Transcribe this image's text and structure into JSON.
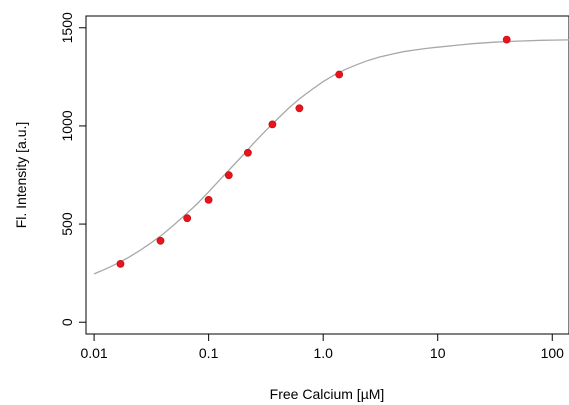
{
  "chart_data": {
    "type": "scatter",
    "title": "",
    "xlabel": "Free Calcium [µM]",
    "ylabel": "Fl. Intensity [a.u.]",
    "x_scale": "log",
    "xlim": [
      0.0085,
      140
    ],
    "ylim": [
      -60,
      1560
    ],
    "x_ticks": [
      {
        "value": 0.01,
        "label": "0.01"
      },
      {
        "value": 0.1,
        "label": "0.1"
      },
      {
        "value": 1,
        "label": "1.0"
      },
      {
        "value": 10,
        "label": "10"
      },
      {
        "value": 100,
        "label": "100"
      }
    ],
    "y_ticks": [
      {
        "value": 0,
        "label": "0"
      },
      {
        "value": 500,
        "label": "500"
      },
      {
        "value": 1000,
        "label": "1000"
      },
      {
        "value": 1500,
        "label": "1500"
      }
    ],
    "grid": false,
    "legend": "none",
    "points": {
      "color": "#e8131b",
      "x": [
        0.017,
        0.038,
        0.065,
        0.1,
        0.15,
        0.22,
        0.36,
        0.62,
        1.38,
        40
      ],
      "y": [
        297,
        415,
        530,
        623,
        749,
        863,
        1008,
        1090,
        1262,
        1440
      ]
    },
    "fit_curve": {
      "color": "#a8a8a8",
      "x": [
        0.01,
        0.0125,
        0.0158,
        0.02,
        0.025,
        0.0316,
        0.04,
        0.05,
        0.063,
        0.08,
        0.1,
        0.125,
        0.158,
        0.2,
        0.25,
        0.316,
        0.4,
        0.5,
        0.63,
        0.8,
        1.0,
        1.25,
        1.58,
        2.0,
        2.5,
        3.16,
        4.0,
        5.0,
        6.3,
        8.0,
        10,
        15,
        20,
        30,
        50,
        80,
        100,
        140
      ],
      "y": [
        246,
        270,
        298,
        330,
        365,
        405,
        449,
        497,
        549,
        605,
        664,
        725,
        788,
        852,
        915,
        977,
        1036,
        1091,
        1141,
        1186,
        1226,
        1260,
        1289,
        1314,
        1335,
        1352,
        1366,
        1378,
        1387,
        1395,
        1401,
        1412,
        1419,
        1426,
        1432,
        1436,
        1437,
        1438
      ]
    }
  }
}
